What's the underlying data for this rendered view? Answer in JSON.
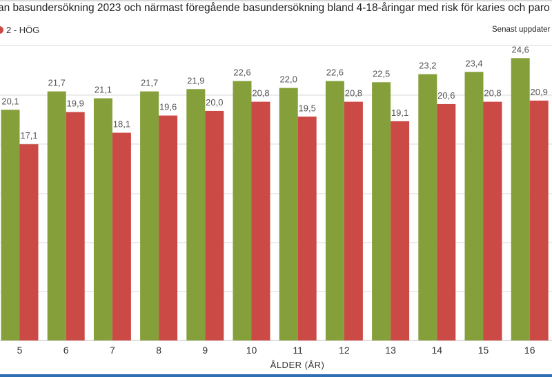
{
  "header": {
    "title": "an basundersökning 2023 och närmast föregående basundersökning bland 4-18-åringar med risk för karies och paro",
    "updated": "Senast uppdater"
  },
  "legend": {
    "items": [
      {
        "label": "2 - HÖG",
        "color": "#cc4a46"
      }
    ]
  },
  "colors": {
    "green": "#85a03b",
    "red": "#cc4a46",
    "grid": "#d9d9d9"
  },
  "chart_data": {
    "type": "bar",
    "xlabel": "ÅLDER (ÅR)",
    "ylabel": "",
    "categories": [
      "5",
      "6",
      "7",
      "8",
      "9",
      "10",
      "11",
      "12",
      "13",
      "14",
      "15",
      "16"
    ],
    "series": [
      {
        "values": [
          20.1,
          21.7,
          21.1,
          21.7,
          21.9,
          22.6,
          22.0,
          22.6,
          22.5,
          23.2,
          23.4,
          24.6
        ],
        "color": "#85a03b"
      },
      {
        "name": "2 - HÖG",
        "values": [
          17.1,
          19.9,
          18.1,
          19.6,
          20.0,
          20.8,
          19.5,
          20.8,
          19.1,
          20.6,
          20.8,
          20.9
        ],
        "color": "#cc4a46"
      }
    ],
    "value_labels": [
      [
        "20,1",
        "21,7",
        "21,1",
        "21,7",
        "21,9",
        "22,6",
        "22,0",
        "22,6",
        "22,5",
        "23,2",
        "23,4",
        "24,6"
      ],
      [
        "17,1",
        "19,9",
        "18,1",
        "19,6",
        "20,0",
        "20,8",
        "19,5",
        "20,8",
        "19,1",
        "20,6",
        "20,8",
        "20,9"
      ]
    ],
    "ylim": [
      0,
      25.7
    ],
    "grid": true,
    "legend_position": "top-left"
  }
}
